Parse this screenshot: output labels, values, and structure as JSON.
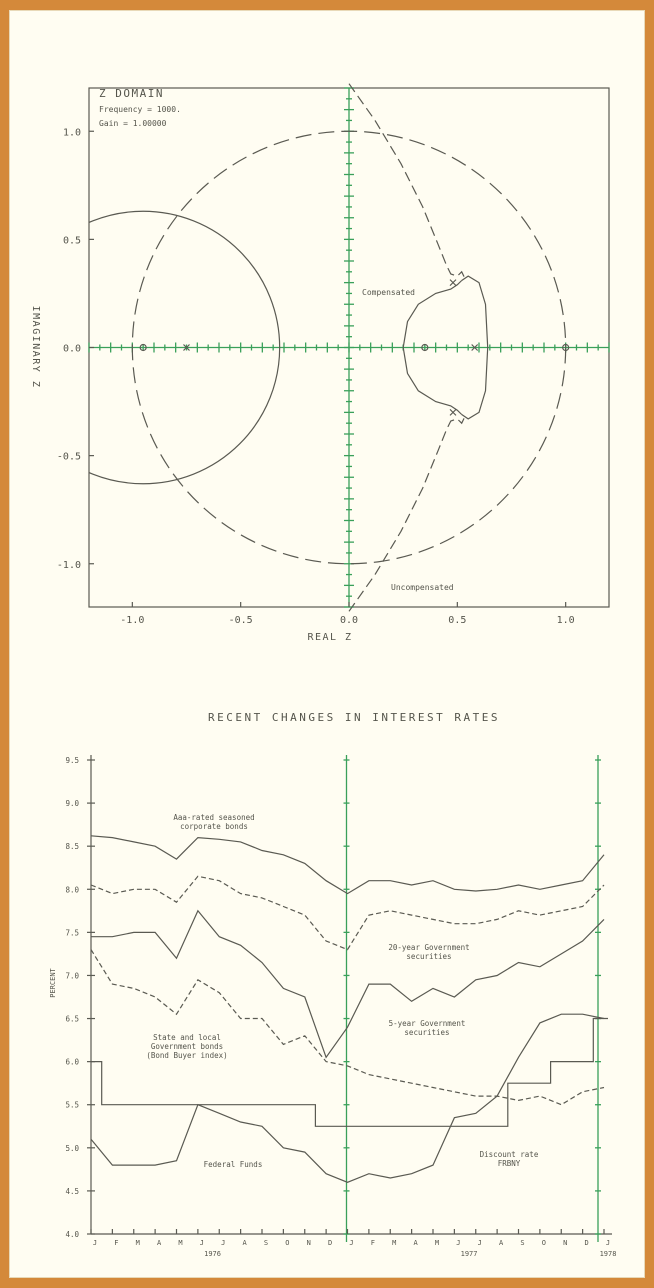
{
  "chart_data": [
    {
      "type": "scatter",
      "title": "Z DOMAIN",
      "annotations_top": [
        "Frequency = 1000.",
        "Gain = 1.00000"
      ],
      "xlabel": "REAL Z",
      "ylabel": "IMAGINARY Z",
      "xlim": [
        -1.2,
        1.2
      ],
      "ylim": [
        -1.2,
        1.2
      ],
      "x_ticks": [
        "-1.0",
        "-0.5",
        "0.0",
        "0.5",
        "1.0"
      ],
      "y_ticks": [
        "1.0",
        "0.5",
        "0.0",
        "-0.5",
        "-1.0"
      ],
      "unit_circle": {
        "center": [
          0,
          0
        ],
        "radius": 1.0
      },
      "series": [
        {
          "name": "Compensated",
          "style": "solid"
        },
        {
          "name": "Uncompensated",
          "style": "dashed"
        }
      ],
      "poles": [
        [
          0.48,
          0.3
        ],
        [
          0.48,
          -0.3
        ],
        [
          0.58,
          0.0
        ],
        [
          -0.75,
          0.0
        ]
      ],
      "zeros": [
        [
          -0.95,
          0.0
        ],
        [
          0.35,
          0.0
        ],
        [
          1.0,
          0.0
        ]
      ],
      "large_circle": {
        "center": [
          -0.95,
          0.0
        ],
        "radius": 0.63
      }
    },
    {
      "type": "line",
      "title": "RECENT CHANGES IN INTEREST RATES",
      "ylabel": "PERCENT",
      "ylim": [
        4.0,
        9.5
      ],
      "y_ticks": [
        "9.5",
        "9.0",
        "8.5",
        "8.0",
        "7.5",
        "7.0",
        "6.5",
        "6.0",
        "5.5",
        "5.0",
        "4.5",
        "4.0"
      ],
      "months": [
        "J",
        "F",
        "M",
        "A",
        "M",
        "J",
        "J",
        "A",
        "S",
        "O",
        "N",
        "D",
        "J",
        "F",
        "M",
        "A",
        "M",
        "J",
        "J",
        "A",
        "S",
        "O",
        "N",
        "D",
        "J"
      ],
      "years": [
        "1976",
        "1977",
        "1978"
      ],
      "series": [
        {
          "name": "Aaa-rated seasoned corporate bonds",
          "style": "solid",
          "values": [
            8.62,
            8.6,
            8.55,
            8.5,
            8.35,
            8.6,
            8.58,
            8.55,
            8.45,
            8.4,
            8.3,
            8.1,
            7.95,
            8.1,
            8.1,
            8.05,
            8.1,
            8.0,
            7.98,
            8.0,
            8.05,
            8.0,
            8.05,
            8.1,
            8.4
          ]
        },
        {
          "name": "20-year Government securities",
          "style": "dashed",
          "values": [
            8.05,
            7.95,
            8.0,
            8.0,
            7.85,
            8.15,
            8.1,
            7.95,
            7.9,
            7.8,
            7.7,
            7.4,
            7.3,
            7.7,
            7.75,
            7.7,
            7.65,
            7.6,
            7.6,
            7.65,
            7.75,
            7.7,
            7.75,
            7.8,
            8.05
          ]
        },
        {
          "name": "5-year Government securities",
          "style": "solid",
          "values": [
            7.45,
            7.45,
            7.5,
            7.5,
            7.2,
            7.75,
            7.45,
            7.35,
            7.15,
            6.85,
            6.75,
            6.05,
            6.4,
            6.9,
            6.9,
            6.7,
            6.85,
            6.75,
            6.95,
            7.0,
            7.15,
            7.1,
            7.25,
            7.4,
            7.65
          ]
        },
        {
          "name": "State and local Government bonds (Bond Buyer index)",
          "style": "dashed",
          "values": [
            7.3,
            6.9,
            6.85,
            6.75,
            6.55,
            6.95,
            6.8,
            6.5,
            6.5,
            6.2,
            6.3,
            6.0,
            5.95,
            5.85,
            5.8,
            5.75,
            5.7,
            5.65,
            5.6,
            5.6,
            5.55,
            5.6,
            5.5,
            5.65,
            5.7
          ]
        },
        {
          "name": "Federal Funds",
          "style": "solid",
          "values": [
            5.1,
            4.8,
            4.8,
            4.8,
            4.85,
            5.5,
            5.4,
            5.3,
            5.25,
            5.0,
            4.95,
            4.7,
            4.6,
            4.7,
            4.65,
            4.7,
            4.8,
            5.35,
            5.4,
            5.6,
            6.05,
            6.45,
            6.55,
            6.55,
            6.5
          ]
        },
        {
          "name": "Discount rate FRBNY",
          "style": "step",
          "values": [
            6.0,
            5.5,
            5.5,
            5.5,
            5.5,
            5.5,
            5.5,
            5.5,
            5.5,
            5.5,
            5.5,
            5.25,
            5.25,
            5.25,
            5.25,
            5.25,
            5.25,
            5.25,
            5.25,
            5.25,
            5.75,
            5.75,
            6.0,
            6.0,
            6.5
          ]
        }
      ],
      "labels": {
        "aaa": [
          "Aaa-rated seasoned",
          "corporate bonds"
        ],
        "gov20": [
          "20-year Government",
          "securities"
        ],
        "gov5": [
          "5-year Government",
          "securities"
        ],
        "state": [
          "State and local",
          "Government bonds",
          "(Bond Buyer index)"
        ],
        "fed": [
          "Federal Funds"
        ],
        "discount": [
          "Discount rate",
          "FRBNY"
        ]
      }
    }
  ]
}
